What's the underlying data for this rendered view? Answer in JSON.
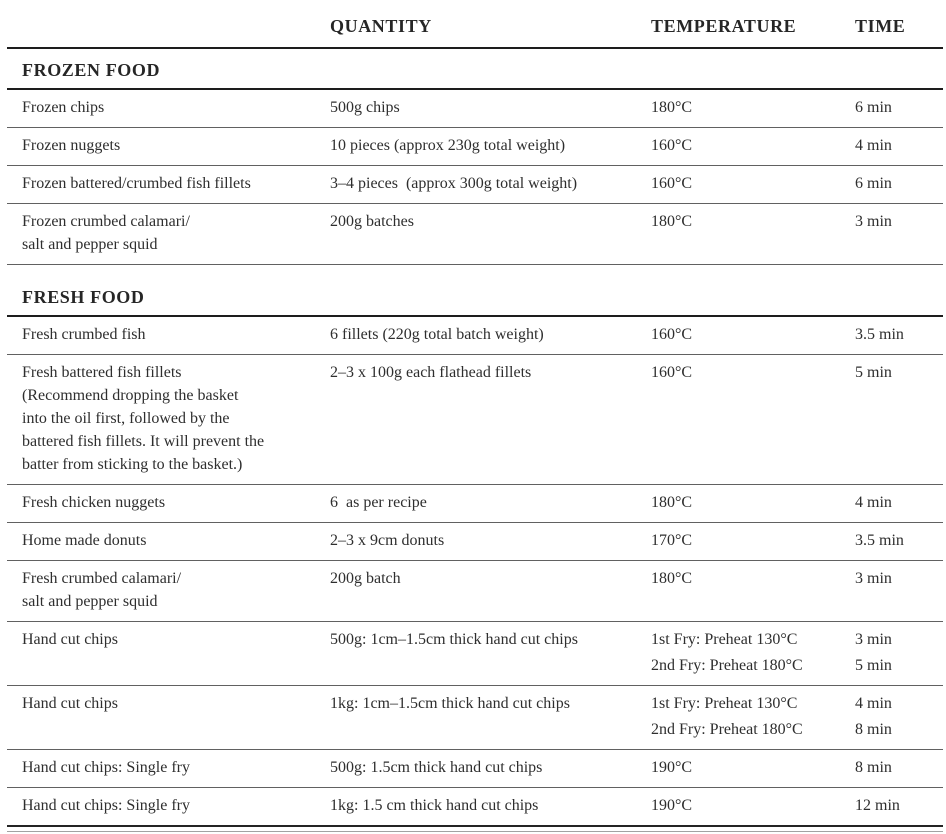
{
  "colors": {
    "text": "#2e2e2e",
    "heavy_rule": "#1d1d1d",
    "light_rule": "#616161"
  },
  "table": {
    "columns": [
      "",
      "QUANTITY",
      "TEMPERATURE",
      "TIME"
    ],
    "sections": [
      {
        "title": "FROZEN FOOD",
        "rows": [
          {
            "item": [
              "Frozen chips"
            ],
            "quantity": "500g chips",
            "temperature": [
              "180°C"
            ],
            "time": [
              "6 min"
            ]
          },
          {
            "item": [
              "Frozen nuggets"
            ],
            "quantity": "10 pieces (approx 230g total weight)",
            "temperature": [
              "160°C"
            ],
            "time": [
              "4 min"
            ]
          },
          {
            "item": [
              "Frozen battered/crumbed fish fillets"
            ],
            "quantity": "3–4 pieces  (approx 300g total weight)",
            "temperature": [
              "160°C"
            ],
            "time": [
              "6 min"
            ]
          },
          {
            "item": [
              "Frozen crumbed calamari/",
              "salt and pepper squid"
            ],
            "quantity": "200g batches",
            "temperature": [
              "180°C"
            ],
            "time": [
              "3 min"
            ]
          }
        ]
      },
      {
        "title": "FRESH FOOD",
        "rows": [
          {
            "item": [
              "Fresh crumbed fish"
            ],
            "quantity": "6 fillets (220g total batch weight)",
            "temperature": [
              "160°C"
            ],
            "time": [
              "3.5 min"
            ]
          },
          {
            "item": [
              "Fresh battered fish fillets",
              "(Recommend dropping the basket",
              "into the oil first, followed by the",
              "battered fish fillets. It will prevent the",
              "batter from sticking to the basket.)"
            ],
            "quantity": "2–3 x 100g each flathead fillets",
            "temperature": [
              "160°C"
            ],
            "time": [
              "5 min"
            ]
          },
          {
            "item": [
              "Fresh chicken nuggets"
            ],
            "quantity": "6  as per recipe",
            "temperature": [
              "180°C"
            ],
            "time": [
              "4 min"
            ]
          },
          {
            "item": [
              "Home made donuts"
            ],
            "quantity": "2–3 x 9cm donuts",
            "temperature": [
              "170°C"
            ],
            "time": [
              "3.5 min"
            ]
          },
          {
            "item": [
              "Fresh crumbed calamari/",
              "salt and pepper squid"
            ],
            "quantity": "200g batch",
            "temperature": [
              "180°C"
            ],
            "time": [
              "3 min"
            ]
          },
          {
            "item": [
              "Hand cut chips"
            ],
            "quantity": "500g: 1cm–1.5cm thick hand cut chips",
            "temperature": [
              "1st Fry: Preheat 130°C",
              "2nd Fry: Preheat 180°C"
            ],
            "time": [
              "3 min",
              "5 min"
            ]
          },
          {
            "item": [
              "Hand cut chips"
            ],
            "quantity": "1kg: 1cm–1.5cm thick hand cut chips",
            "temperature": [
              "1st Fry: Preheat 130°C",
              "2nd Fry: Preheat 180°C"
            ],
            "time": [
              "4 min",
              "8 min"
            ]
          },
          {
            "item": [
              "Hand cut chips: Single fry"
            ],
            "quantity": "500g: 1.5cm thick hand cut chips",
            "temperature": [
              "190°C"
            ],
            "time": [
              "8 min"
            ]
          },
          {
            "item": [
              "Hand cut chips: Single fry"
            ],
            "quantity": "1kg: 1.5 cm thick hand cut chips",
            "temperature": [
              "190°C"
            ],
            "time": [
              "12 min"
            ]
          }
        ]
      }
    ]
  }
}
